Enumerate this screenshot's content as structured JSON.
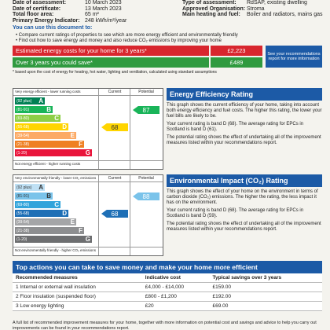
{
  "header": {
    "left": [
      [
        "Date of assessment:",
        "10 March 2023"
      ],
      [
        "Date of certificate:",
        "13 March 2023"
      ],
      [
        "Total floor area:",
        "65 m²"
      ],
      [
        "Primary Energy Indicator:",
        "248 kWh/m²/year"
      ]
    ],
    "right": [
      [
        "Type of assessment:",
        "RdSAP, existing dwelling"
      ],
      [
        "Approved Organisation:",
        "Stroma"
      ],
      [
        "Main heating and fuel:",
        "Boiler and radiators, mains gas"
      ]
    ]
  },
  "intro": {
    "title": "You can use this document to:",
    "bullets": [
      "Compare current ratings of properties to see which are more energy efficient and environmentally friendly",
      "Find out how to save energy and money and also reduce CO₂ emissions by improving your home"
    ]
  },
  "costs": {
    "estimate_label": "Estimated energy costs for your home for 3 years*",
    "estimate": "£2,223",
    "save_label": "Over 3 years you could save*",
    "save": "£489",
    "note": "See your recommendations report for more information",
    "footnote": "* based upon the cost of energy for heating, hot water, lighting and ventilation, calculated using standard assumptions"
  },
  "energy": {
    "top": "Very energy efficient - lower running costs",
    "bottom": "Not energy efficient - higher running costs",
    "current_header": "Current",
    "potential_header": "Potential",
    "bands": [
      [
        "(92 plus)",
        "A"
      ],
      [
        "(81-91)",
        "B"
      ],
      [
        "(69-80)",
        "C"
      ],
      [
        "(55-68)",
        "D"
      ],
      [
        "(39-54)",
        "E"
      ],
      [
        "(21-38)",
        "F"
      ],
      [
        "(1-20)",
        "G"
      ]
    ],
    "current": 68,
    "potential": 87,
    "title": "Energy Efficiency Rating",
    "paragraphs": [
      "This graph shows the current efficiency of your home, taking into account both energy efficiency and fuel costs. The higher this rating, the lower your fuel bills are likely to be.",
      "Your current rating is band D (68). The average rating for EPCs in Scotland is band D (61).",
      "The potential rating shows the effect of undertaking all of the improvement measures listed within your recommendations report."
    ]
  },
  "environment": {
    "top": "Very environmentally friendly - lower CO₂ emissions",
    "bottom": "Not environmentally friendly - higher CO₂ emissions",
    "current_header": "Current",
    "potential_header": "Potential",
    "bands": [
      [
        "(92 plus)",
        "A"
      ],
      [
        "(81-91)",
        "B"
      ],
      [
        "(69-80)",
        "C"
      ],
      [
        "(55-68)",
        "D"
      ],
      [
        "(39-54)",
        "E"
      ],
      [
        "(21-38)",
        "F"
      ],
      [
        "(1-20)",
        "G"
      ]
    ],
    "current": 68,
    "potential": 88,
    "title": "Environmental Impact (CO₂) Rating",
    "paragraphs": [
      "This graph shows the effect of your home on the environment in terms of carbon dioxide (CO₂) emissions. The higher the rating, the less impact it has on the environment.",
      "Your current rating is band D (68). The average rating for EPCs in Scotland is band D (59).",
      "The potential rating shows the effect of undertaking all of the improvement measures listed within your recommendations report."
    ]
  },
  "actions": {
    "title": "Top actions you can take to save money and make your home more efficient",
    "columns": [
      "Recommended measures",
      "Indicative cost",
      "Typical savings over 3 years"
    ],
    "rows": [
      [
        "1 Internal or external wall insulation",
        "£4,000 - £14,000",
        "£159.00"
      ],
      [
        "2 Floor insulation (suspended floor)",
        "£800 - £1,200",
        "£192.00"
      ],
      [
        "3 Low energy lighting",
        "£20",
        "£69.00"
      ]
    ],
    "footer": "A full list of recommended improvement measures for your home, together with more information on potential cost and savings and advice to help you carry out improvements can be found in your recommendations report."
  }
}
